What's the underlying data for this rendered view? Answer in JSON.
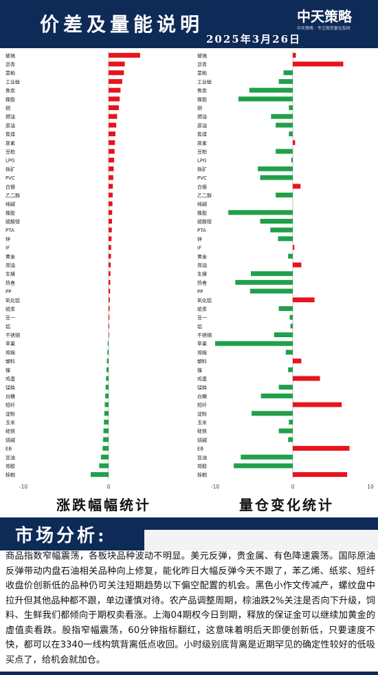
{
  "header": {
    "title": "价差及量能说明",
    "date": "2025年3月26日",
    "logo": "中天策略",
    "logo_sub": "中天策略 · 专注期货量化投研"
  },
  "chart_data": [
    {
      "type": "bar",
      "orientation": "horizontal",
      "caption": "涨跌幅幅统计",
      "xlim": [
        -10,
        10
      ],
      "xticks": [
        -10,
        0,
        10
      ],
      "positive_color": "#e8141b",
      "negative_color": "#21a04a",
      "categories": [
        "玻璃",
        "沥青",
        "菜粕",
        "工业硅",
        "焦炭",
        "橡胶",
        "铜",
        "燃油",
        "原油",
        "焦煤",
        "尿素",
        "豆粕",
        "LPG",
        "铁矿",
        "PVC",
        "白银",
        "乙二醇",
        "纯碱",
        "橡胶",
        "硫酸铵",
        "PTA",
        "锌",
        "IF",
        "黄金",
        "郑油",
        "生猪",
        "热卷",
        "PP",
        "氧化铝",
        "纸浆",
        "豆一",
        "铝",
        "不锈钢",
        "苹果",
        "郑棉",
        "塑料",
        "镍",
        "鸡蛋",
        "锰硅",
        "白糖",
        "短纤",
        "淀粉",
        "玉米",
        "硅铁",
        "烧碱",
        "EB",
        "豆油",
        "郑醇",
        "棕榈"
      ],
      "values": [
        3.7,
        1.9,
        1.8,
        1.6,
        1.4,
        1.3,
        1.2,
        1.0,
        0.9,
        0.8,
        0.75,
        0.7,
        0.65,
        0.6,
        0.55,
        0.5,
        0.48,
        0.45,
        0.42,
        0.4,
        0.38,
        0.35,
        0.3,
        0.28,
        0.25,
        0.22,
        0.2,
        0.18,
        0.15,
        0.12,
        0.1,
        0.08,
        0.05,
        -0.1,
        -0.15,
        -0.2,
        -0.25,
        -0.3,
        -0.35,
        -0.4,
        -0.45,
        -0.5,
        -0.55,
        -0.6,
        -0.65,
        -0.7,
        -0.9,
        -1.1,
        -2.1
      ]
    },
    {
      "type": "bar",
      "orientation": "horizontal",
      "caption": "量仓变化统计",
      "xlim": [
        -10,
        10
      ],
      "xticks": [
        -10,
        0,
        10
      ],
      "positive_color": "#e8141b",
      "negative_color": "#21a04a",
      "categories": [
        "玻璃",
        "沥青",
        "菜粕",
        "工业硅",
        "焦炭",
        "橡胶",
        "铜",
        "燃油",
        "原油",
        "焦煤",
        "尿素",
        "豆粕",
        "LPG",
        "铁矿",
        "PVC",
        "白银",
        "乙二醇",
        "纯碱",
        "橡胶",
        "硫酸铵",
        "PTA",
        "锌",
        "IF",
        "黄金",
        "郑油",
        "生猪",
        "热卷",
        "PP",
        "氧化铝",
        "纸浆",
        "豆一",
        "铝",
        "不锈钢",
        "苹果",
        "郑棉",
        "塑料",
        "镍",
        "鸡蛋",
        "锰硅",
        "白糖",
        "短纤",
        "淀粉",
        "玉米",
        "硅铁",
        "烧碱",
        "EB",
        "豆油",
        "郑醇",
        "棕榈"
      ],
      "values": [
        0.4,
        6.5,
        -1.2,
        -1.8,
        -5.6,
        -7.0,
        -0.5,
        -2.8,
        -2.2,
        -0.5,
        0.3,
        -2.2,
        -0.2,
        -4.5,
        -4.2,
        1.0,
        -2.2,
        0.0,
        -8.3,
        -4.2,
        -2.9,
        -1.9,
        0.2,
        -0.6,
        1.1,
        -5.4,
        -7.4,
        -5.5,
        2.8,
        -1.8,
        -0.4,
        -0.3,
        -2.4,
        -10.0,
        -0.9,
        1.1,
        -0.6,
        3.5,
        -1.8,
        -4.1,
        6.3,
        -5.3,
        -0.5,
        -1.8,
        -0.6,
        7.3,
        -6.7,
        -7.6,
        7.0
      ]
    }
  ],
  "analysis": {
    "section_title": "市场分析:",
    "text": "商品指数窄幅震荡，各板块品种波动不明显。美元反弹，贵金属、有色降速震荡。国际原油反弹带动内盘石油相关品种向上修复，能化昨日大幅反弹今天不跟了，苯乙烯、纸浆、短纤收盘价创新低的品种仍可关注短期趋势以下偏空配置的机会。黑色小作文传减产，螺纹盘中拉升但其他品种都不跟，单边谨慎对待。农产品调整周期，棕油跌2%关注是否向下升级，饲料、生鲜我们都倾向于期权卖看涨。上海04期权今日到期，释放的保证金可以继续加黄金的虚值卖看跌。股指窄幅震荡，60分钟指标翻红，这意味着明后天即便创新低，只要速度不快，都可以在3340一线构筑背离低点收回。小时级别底背离是近期罕见的确定性较好的低吸买点了，给机会就加仓。"
  }
}
